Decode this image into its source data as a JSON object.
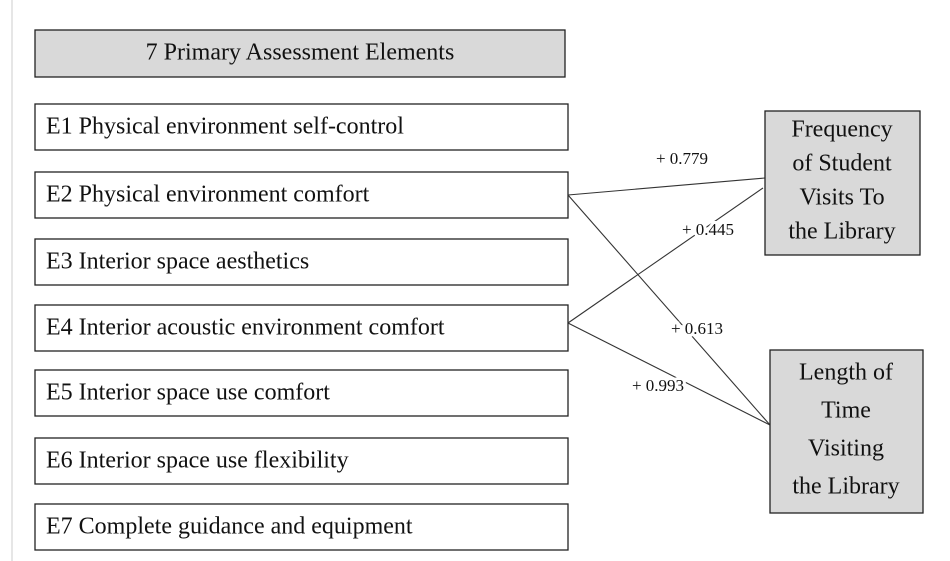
{
  "header": {
    "title": "7 Primary Assessment Elements"
  },
  "elements": [
    "E1 Physical environment self-control",
    "E2 Physical environment comfort",
    "E3 Interior space aesthetics",
    "E4 Interior acoustic environment comfort",
    "E5 Interior space use comfort",
    "E6 Interior space use flexibility",
    "E7 Complete guidance and equipment"
  ],
  "outcomes": [
    {
      "lines": [
        "Frequency",
        "of Student",
        "Visits To",
        "the Library"
      ]
    },
    {
      "lines": [
        "Length of",
        "Time",
        "Visiting",
        "the Library"
      ]
    }
  ],
  "edge_labels": [
    "+ 0.779",
    "+ 0.445",
    "+ 0.613",
    "+ 0.993"
  ]
}
